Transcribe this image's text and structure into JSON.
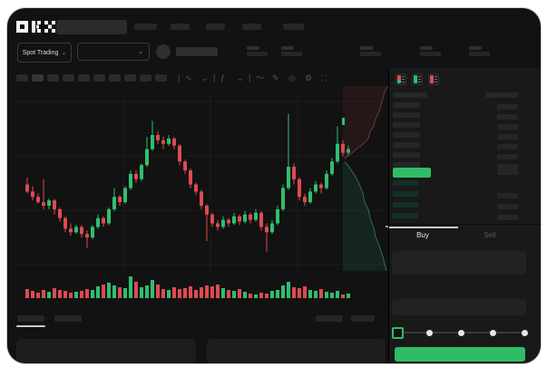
{
  "colors": {
    "up": "#2fbf6f",
    "down": "#dd4b51",
    "accent_green": "#2ebd64",
    "bid_row_tint": "#143024",
    "ask_row_gray": "#262626",
    "grid": "#1c1c1c",
    "depth_ask_line": "#6e3a3f",
    "depth_bid_line": "#2e6e5a",
    "depth_ask_fill": "rgba(210,60,70,0.10)",
    "depth_bid_fill": "rgba(40,180,130,0.12)"
  },
  "header": {
    "logo": "OKX"
  },
  "controls": {
    "market_selector_label": "Spot Trading",
    "market_selector_chevron": "⌄",
    "pair_selector_chevron": "⌄"
  },
  "toolbar": {
    "timeframe_slots": 10,
    "active_slot": 1,
    "icons": [
      {
        "name": "separator",
        "glyph": "|"
      },
      {
        "name": "indicator-label",
        "glyph": "∿"
      },
      {
        "name": "chevron-down-icon",
        "glyph": "⌄"
      },
      {
        "name": "separator",
        "glyph": "|"
      },
      {
        "name": "function-icon",
        "glyph": "ƒ"
      },
      {
        "name": "chevron-down-icon",
        "glyph": "⌄"
      },
      {
        "name": "separator",
        "glyph": "|"
      },
      {
        "name": "wave-icon",
        "glyph": "〜"
      },
      {
        "name": "draw-icon",
        "glyph": "✎"
      },
      {
        "name": "camera-icon",
        "glyph": "◎"
      },
      {
        "name": "settings-icon",
        "glyph": "⚙"
      },
      {
        "name": "expand-icon",
        "glyph": "⛶"
      }
    ]
  },
  "orderbook": {
    "view_icons": [
      "book-all-icon",
      "book-bids-icon",
      "book-asks-icon"
    ],
    "ask_rows": 7,
    "bid_rows": 4,
    "bid_rows_with_size": [
      1,
      2,
      3
    ],
    "tabs": {
      "buy": "Buy",
      "sell": "Sell",
      "active": "buy"
    }
  },
  "trade_form": {
    "slider_stops": [
      0,
      25,
      50,
      75,
      100
    ],
    "slider_value": 0,
    "submit_label": ""
  },
  "chart_data": {
    "type": "candlestick",
    "title": "",
    "xlabel": "",
    "ylabel": "",
    "price_range": [
      0,
      100
    ],
    "grid": true,
    "candles": [
      [
        52,
        56,
        47,
        48
      ],
      [
        48,
        51,
        43,
        45
      ],
      [
        45,
        47,
        41,
        42
      ],
      [
        42,
        55,
        38,
        40
      ],
      [
        40,
        44,
        38,
        43
      ],
      [
        43,
        44,
        35,
        38
      ],
      [
        38,
        39,
        31,
        33
      ],
      [
        33,
        34,
        25,
        27
      ],
      [
        27,
        30,
        23,
        25
      ],
      [
        25,
        29,
        24,
        28
      ],
      [
        28,
        29,
        22,
        24
      ],
      [
        24,
        26,
        16,
        22
      ],
      [
        22,
        29,
        21,
        28
      ],
      [
        28,
        35,
        27,
        33
      ],
      [
        33,
        34,
        28,
        30
      ],
      [
        30,
        39,
        29,
        38
      ],
      [
        38,
        50,
        37,
        45
      ],
      [
        45,
        46,
        40,
        42
      ],
      [
        42,
        51,
        41,
        50
      ],
      [
        50,
        60,
        49,
        58
      ],
      [
        58,
        60,
        53,
        55
      ],
      [
        55,
        64,
        54,
        63
      ],
      [
        63,
        79,
        62,
        72
      ],
      [
        72,
        88,
        71,
        80
      ],
      [
        80,
        82,
        75,
        77
      ],
      [
        77,
        79,
        72,
        75
      ],
      [
        75,
        80,
        74,
        78
      ],
      [
        78,
        79,
        72,
        74
      ],
      [
        74,
        75,
        63,
        65
      ],
      [
        65,
        66,
        58,
        60
      ],
      [
        60,
        61,
        50,
        52
      ],
      [
        52,
        53,
        46,
        48
      ],
      [
        48,
        49,
        38,
        40
      ],
      [
        40,
        41,
        20,
        35
      ],
      [
        35,
        36,
        28,
        30
      ],
      [
        30,
        32,
        26,
        28
      ],
      [
        28,
        34,
        27,
        32
      ],
      [
        32,
        33,
        28,
        30
      ],
      [
        30,
        36,
        29,
        34
      ],
      [
        34,
        35,
        29,
        31
      ],
      [
        31,
        37,
        30,
        35
      ],
      [
        35,
        36,
        30,
        32
      ],
      [
        32,
        38,
        31,
        36
      ],
      [
        36,
        37,
        26,
        28
      ],
      [
        28,
        30,
        14,
        25
      ],
      [
        25,
        32,
        24,
        30
      ],
      [
        30,
        40,
        29,
        38
      ],
      [
        38,
        52,
        37,
        50
      ],
      [
        50,
        92,
        49,
        62
      ],
      [
        62,
        64,
        52,
        55
      ],
      [
        55,
        56,
        43,
        45
      ],
      [
        45,
        47,
        40,
        42
      ],
      [
        42,
        50,
        41,
        48
      ],
      [
        48,
        54,
        47,
        52
      ],
      [
        52,
        53,
        47,
        50
      ],
      [
        50,
        60,
        49,
        58
      ],
      [
        58,
        67,
        57,
        65
      ],
      [
        65,
        85,
        64,
        75
      ],
      [
        75,
        77,
        68,
        70
      ],
      [
        70,
        74,
        68,
        72
      ]
    ],
    "volume": [
      10,
      8,
      6,
      9,
      7,
      11,
      9,
      8,
      6,
      7,
      8,
      10,
      9,
      13,
      15,
      17,
      14,
      12,
      11,
      24,
      18,
      12,
      14,
      20,
      15,
      10,
      9,
      12,
      10,
      11,
      13,
      9,
      12,
      14,
      13,
      15,
      11,
      9,
      8,
      10,
      7,
      5,
      4,
      6,
      5,
      8,
      9,
      14,
      18,
      12,
      11,
      13,
      9,
      8,
      10,
      7,
      6,
      8,
      4,
      5
    ],
    "depth": {
      "asks": [
        [
          50,
          0
        ],
        [
          46,
          6
        ],
        [
          44,
          14
        ],
        [
          42,
          20
        ],
        [
          40,
          28
        ],
        [
          36,
          36
        ],
        [
          34,
          44
        ],
        [
          30,
          50
        ],
        [
          28,
          58
        ],
        [
          24,
          62
        ],
        [
          20,
          66
        ],
        [
          14,
          70
        ],
        [
          10,
          74
        ],
        [
          6,
          76
        ],
        [
          2,
          80
        ]
      ],
      "bids": [
        [
          2,
          84
        ],
        [
          6,
          88
        ],
        [
          10,
          94
        ],
        [
          14,
          100
        ],
        [
          18,
          108
        ],
        [
          22,
          118
        ],
        [
          24,
          128
        ],
        [
          28,
          136
        ],
        [
          30,
          146
        ],
        [
          34,
          156
        ],
        [
          36,
          166
        ],
        [
          40,
          176
        ],
        [
          44,
          188
        ],
        [
          46,
          196
        ],
        [
          48,
          204
        ]
      ]
    }
  }
}
